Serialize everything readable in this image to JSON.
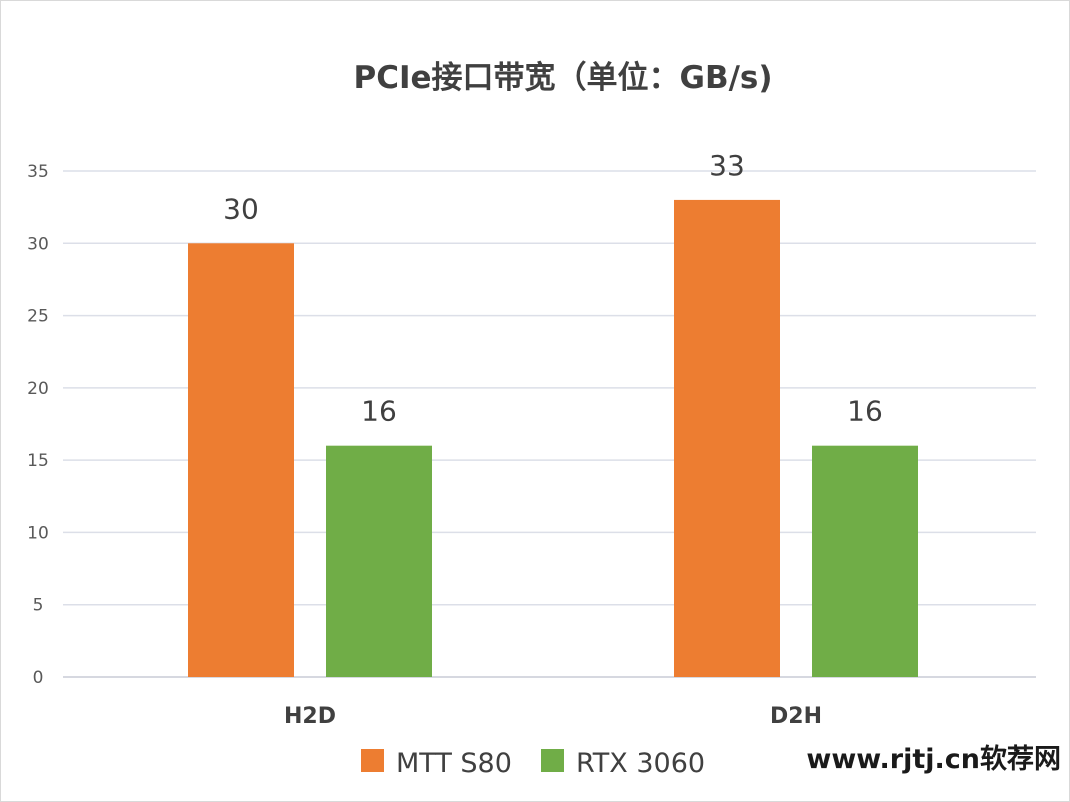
{
  "chart_data": {
    "type": "bar",
    "title": "PCIe接口带宽（单位：GB/s)",
    "categories": [
      "H2D",
      "D2H"
    ],
    "series": [
      {
        "name": "MTT S80",
        "values": [
          30,
          33
        ],
        "color": "#ed7d31"
      },
      {
        "name": "RTX 3060",
        "values": [
          16,
          16
        ],
        "color": "#70ad47"
      }
    ],
    "ylim": [
      0,
      35
    ],
    "yticks": [
      0,
      5,
      10,
      15,
      20,
      25,
      30,
      35
    ],
    "grid": true,
    "legend_position": "bottom",
    "data_labels": true
  },
  "watermark": "www.rjtj.cn软荐网"
}
